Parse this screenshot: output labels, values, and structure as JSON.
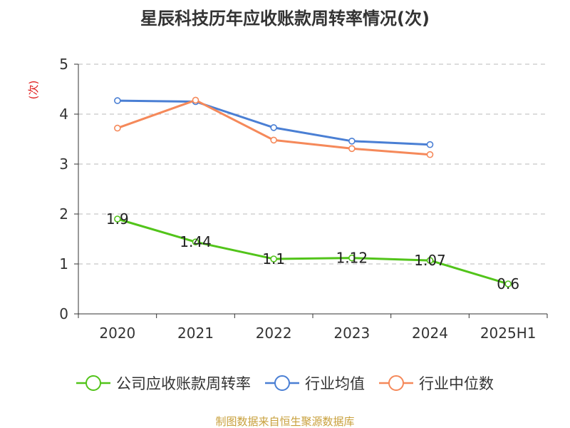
{
  "chart_data": {
    "type": "line",
    "title": "星辰科技历年应收账款周转率情况(次)",
    "ylabel": "(次)",
    "xlabel": "",
    "categories": [
      "2020",
      "2021",
      "2022",
      "2023",
      "2024",
      "2025H1"
    ],
    "ylim": [
      0,
      5
    ],
    "yticks": [
      0,
      1,
      2,
      3,
      4,
      5
    ],
    "grid": true,
    "legend_position": "bottom",
    "series": [
      {
        "name": "公司应收账款周转率",
        "color": "#52c41a",
        "values": [
          1.9,
          1.44,
          1.1,
          1.12,
          1.07,
          0.6
        ],
        "labels": [
          "1.9",
          "1.44",
          "1.1",
          "1.12",
          "1.07",
          "0.6"
        ]
      },
      {
        "name": "行业均值",
        "color": "#4a7fd4",
        "values": [
          4.27,
          4.25,
          3.73,
          3.46,
          3.39,
          null
        ]
      },
      {
        "name": "行业中位数",
        "color": "#f5895a",
        "values": [
          3.72,
          4.28,
          3.48,
          3.31,
          3.19,
          null
        ]
      }
    ]
  },
  "footer": "制图数据来自恒生聚源数据库"
}
